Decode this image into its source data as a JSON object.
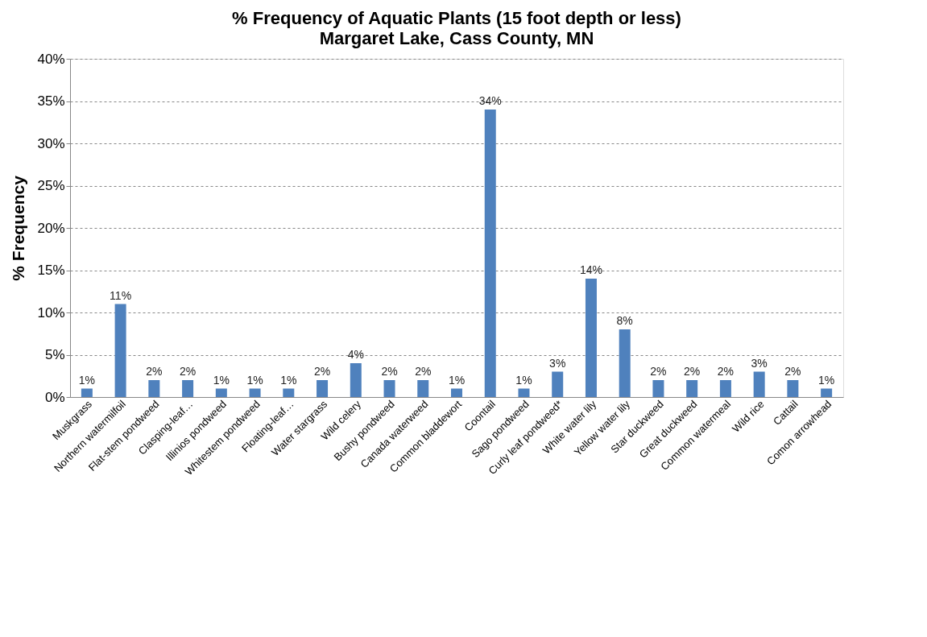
{
  "chart_data": {
    "type": "bar",
    "title": "% Frequency of Aquatic Plants (15 foot depth or less)",
    "subtitle": "Margaret Lake, Cass County, MN",
    "ylabel": "% Frequency",
    "categories": [
      "Muskgrass",
      "Northern watermilfoil",
      "Flat-stem pondweed",
      "Clasping-leaf…",
      "Illinios pondweed",
      "Whitestem pondweed",
      "Floating-leaf…",
      "Water stargrass",
      "Wild celery",
      "Bushy pondweed",
      "Canada waterweed",
      "Common bladdewort",
      "Coontail",
      "Sago pondweed",
      "Curly leaf pondweed*",
      "White water lily",
      "Yellow water lily",
      "Star duckweed",
      "Great duckweed",
      "Common watermeal",
      "Wild rice",
      "Cattail",
      "Comon arrowhead"
    ],
    "values": [
      1,
      11,
      2,
      2,
      1,
      1,
      1,
      2,
      4,
      2,
      2,
      1,
      34,
      1,
      3,
      14,
      8,
      2,
      2,
      2,
      3,
      2,
      1
    ],
    "value_labels": [
      "1%",
      "11%",
      "2%",
      "2%",
      "1%",
      "1%",
      "1%",
      "2%",
      "4%",
      "2%",
      "2%",
      "1%",
      "34%",
      "1%",
      "3%",
      "14%",
      "8%",
      "2%",
      "2%",
      "2%",
      "3%",
      "2%",
      "1%"
    ],
    "color": "#4f81bd",
    "ylim": [
      0,
      40
    ],
    "yticks": [
      {
        "value": 0,
        "label": "0%"
      },
      {
        "value": 5,
        "label": "5%"
      },
      {
        "value": 10,
        "label": "10%"
      },
      {
        "value": 15,
        "label": "15%"
      },
      {
        "value": 20,
        "label": "20%"
      },
      {
        "value": 25,
        "label": "25%"
      },
      {
        "value": 30,
        "label": "30%"
      },
      {
        "value": 35,
        "label": "35%"
      },
      {
        "value": 40,
        "label": "40%"
      }
    ],
    "grid": "y"
  }
}
